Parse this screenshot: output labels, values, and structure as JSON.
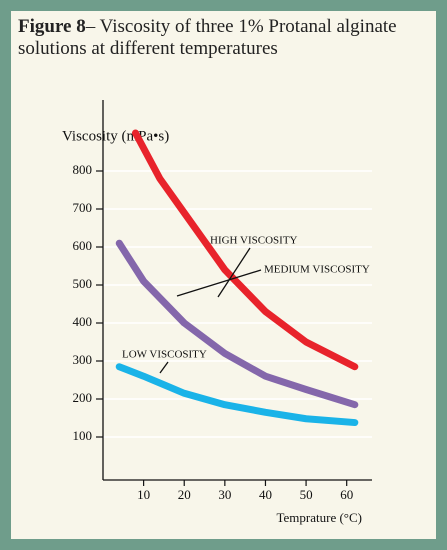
{
  "chart_data": {
    "type": "line",
    "title_label": "Figure 8",
    "title": "– Viscosity of three 1% Protanal alginate solutions at different temperatures",
    "y_label": "Viscosity (mPa•s)",
    "x_label": "Temprature (°C)",
    "xlim": [
      0,
      65
    ],
    "xticks": [
      10,
      20,
      30,
      40,
      50,
      60
    ],
    "ylim": [
      0,
      950
    ],
    "yticks": [
      100,
      200,
      300,
      400,
      500,
      600,
      700,
      800
    ],
    "grid": true,
    "series": [
      {
        "name": "HIGH VISCOSITY",
        "color": "#e8232b",
        "x": [
          8,
          14,
          20,
          30,
          40,
          50,
          62
        ],
        "values": [
          900,
          780,
          690,
          540,
          430,
          350,
          285
        ]
      },
      {
        "name": "MEDIUM VISCOSITY",
        "color": "#8467ab",
        "x": [
          4,
          10,
          20,
          30,
          40,
          50,
          62
        ],
        "values": [
          610,
          510,
          400,
          320,
          260,
          225,
          185
        ]
      },
      {
        "name": "LOW VISCOSITY",
        "color": "#1ab3e8",
        "x": [
          4,
          10,
          20,
          30,
          40,
          50,
          62
        ],
        "values": [
          285,
          260,
          215,
          185,
          165,
          148,
          138
        ]
      }
    ]
  }
}
